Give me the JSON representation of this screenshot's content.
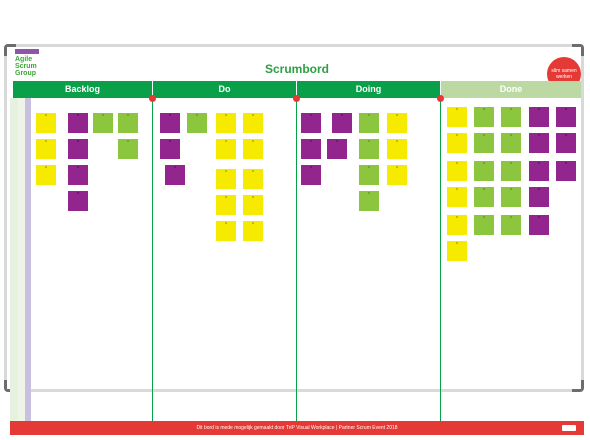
{
  "board": {
    "title": "Scrumbord",
    "logo_text": "Agile Scrum Group",
    "badge_text": "slim samen werken",
    "footer_text": "Dit bord is mede mogelijk gemaakt door TriP Visual Workplace | Partner Scrum Event 2018"
  },
  "columns": [
    {
      "label": "Backlog",
      "style": "green"
    },
    {
      "label": "Do",
      "style": "green"
    },
    {
      "label": "Doing",
      "style": "green"
    },
    {
      "label": "Done",
      "style": "done"
    }
  ],
  "colors": {
    "header_green": "#0aa04a",
    "done_header": "#bcd9a4",
    "accent_red": "#e53935",
    "note_yellow": "#f6ea00",
    "note_purple": "#93268e",
    "note_green": "#8cc63f"
  }
}
